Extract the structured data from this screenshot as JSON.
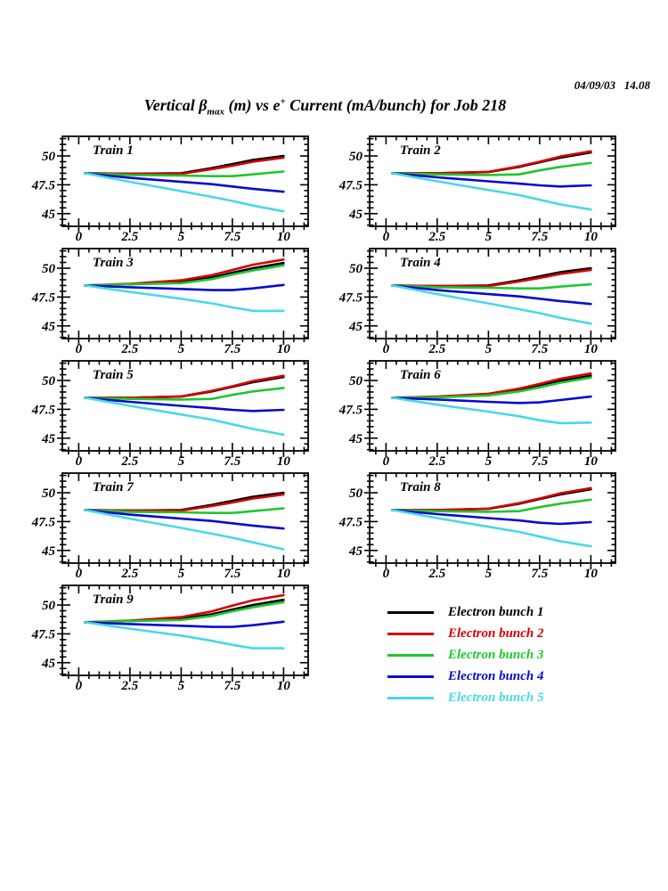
{
  "page": {
    "timestamp": "04/09/03   14.08",
    "title_part1": "Vertical β",
    "title_sub": "max",
    "title_part2": " (m) vs e",
    "title_sup": "+",
    "title_part3": " Current (mA/bunch) for Job 218"
  },
  "chart_data": {
    "type": "line",
    "title": "Vertical β_max (m) vs e+ Current (mA/bunch) for Job 218",
    "timestamp": "04/09/03 14.08",
    "layout": "grid of 9 panels (2 columns x 5 rows), legend in bottom-right cell",
    "grid": false,
    "legend_position": "bottom-right",
    "x": [
      0.3,
      2.5,
      5,
      6.5,
      7.5,
      8.5,
      10
    ],
    "xlim": [
      -0.8,
      11.2
    ],
    "ylim": [
      43.9,
      51.7
    ],
    "x_ticks": [
      0,
      2.5,
      5,
      7.5,
      10
    ],
    "x_tick_labels": [
      "0",
      "2.5",
      "5",
      "7.5",
      "10"
    ],
    "y_ticks": [
      45,
      47.5,
      50
    ],
    "y_tick_labels": [
      "45",
      "47.5",
      "50"
    ],
    "minor_tick_step": 0.5,
    "series": [
      {
        "name": "Electron bunch 1",
        "color": "#000000"
      },
      {
        "name": "Electron bunch 2",
        "color": "#d40000"
      },
      {
        "name": "Electron bunch 3",
        "color": "#1fc72e"
      },
      {
        "name": "Electron bunch 4",
        "color": "#0a0acc"
      },
      {
        "name": "Electron bunch 5",
        "color": "#49d8e6"
      }
    ],
    "panels": [
      {
        "label": "Train 1",
        "values": [
          [
            48.5,
            48.45,
            48.5,
            48.95,
            49.3,
            49.65,
            50.0
          ],
          [
            48.5,
            48.45,
            48.45,
            48.85,
            49.15,
            49.5,
            49.85
          ],
          [
            48.5,
            48.35,
            48.3,
            48.25,
            48.25,
            48.4,
            48.65
          ],
          [
            48.5,
            48.1,
            47.75,
            47.55,
            47.35,
            47.15,
            46.9
          ],
          [
            48.5,
            47.75,
            46.95,
            46.45,
            46.1,
            45.7,
            45.2
          ]
        ]
      },
      {
        "label": "Train 2",
        "values": [
          [
            48.5,
            48.5,
            48.6,
            49.05,
            49.45,
            49.85,
            50.3
          ],
          [
            48.5,
            48.5,
            48.62,
            49.1,
            49.5,
            49.95,
            50.4
          ],
          [
            48.5,
            48.4,
            48.35,
            48.4,
            48.75,
            49.05,
            49.4
          ],
          [
            48.5,
            48.15,
            47.8,
            47.6,
            47.45,
            47.35,
            47.45
          ],
          [
            48.5,
            47.8,
            47.05,
            46.6,
            46.2,
            45.8,
            45.35
          ]
        ]
      },
      {
        "label": "Train 3",
        "values": [
          [
            48.5,
            48.6,
            48.8,
            49.2,
            49.6,
            50.0,
            50.45
          ],
          [
            48.5,
            48.65,
            48.95,
            49.4,
            49.85,
            50.3,
            50.75
          ],
          [
            48.5,
            48.6,
            48.7,
            49.05,
            49.45,
            49.8,
            50.25
          ],
          [
            48.5,
            48.35,
            48.2,
            48.1,
            48.1,
            48.25,
            48.55
          ],
          [
            48.5,
            47.95,
            47.35,
            46.95,
            46.6,
            46.3,
            46.3
          ]
        ]
      },
      {
        "label": "Train 4",
        "values": [
          [
            48.5,
            48.45,
            48.5,
            48.95,
            49.3,
            49.65,
            50.0
          ],
          [
            48.5,
            48.45,
            48.45,
            48.85,
            49.15,
            49.5,
            49.85
          ],
          [
            48.5,
            48.35,
            48.3,
            48.25,
            48.25,
            48.4,
            48.6
          ],
          [
            48.5,
            48.1,
            47.75,
            47.55,
            47.35,
            47.15,
            46.9
          ],
          [
            48.5,
            47.75,
            46.95,
            46.45,
            46.1,
            45.7,
            45.2
          ]
        ]
      },
      {
        "label": "Train 5",
        "values": [
          [
            48.5,
            48.5,
            48.6,
            49.05,
            49.45,
            49.85,
            50.3
          ],
          [
            48.5,
            48.5,
            48.62,
            49.1,
            49.5,
            49.95,
            50.4
          ],
          [
            48.5,
            48.4,
            48.35,
            48.4,
            48.75,
            49.05,
            49.35
          ],
          [
            48.5,
            48.15,
            47.8,
            47.6,
            47.45,
            47.35,
            47.45
          ],
          [
            48.5,
            47.8,
            47.05,
            46.6,
            46.2,
            45.8,
            45.3
          ]
        ]
      },
      {
        "label": "Train 6",
        "values": [
          [
            48.5,
            48.55,
            48.75,
            49.15,
            49.55,
            49.95,
            50.4
          ],
          [
            48.5,
            48.6,
            48.85,
            49.3,
            49.7,
            50.15,
            50.6
          ],
          [
            48.5,
            48.55,
            48.7,
            49.05,
            49.4,
            49.8,
            50.25
          ],
          [
            48.5,
            48.35,
            48.15,
            48.05,
            48.1,
            48.3,
            48.6
          ],
          [
            48.5,
            47.9,
            47.3,
            46.9,
            46.55,
            46.3,
            46.35
          ]
        ]
      },
      {
        "label": "Train 7",
        "values": [
          [
            48.5,
            48.45,
            48.5,
            48.95,
            49.3,
            49.65,
            50.0
          ],
          [
            48.5,
            48.45,
            48.45,
            48.85,
            49.15,
            49.5,
            49.85
          ],
          [
            48.5,
            48.35,
            48.3,
            48.25,
            48.25,
            48.4,
            48.65
          ],
          [
            48.5,
            48.1,
            47.75,
            47.55,
            47.35,
            47.15,
            46.9
          ],
          [
            48.5,
            47.75,
            46.95,
            46.45,
            46.1,
            45.7,
            45.1
          ]
        ]
      },
      {
        "label": "Train 8",
        "values": [
          [
            48.5,
            48.5,
            48.6,
            49.05,
            49.45,
            49.85,
            50.3
          ],
          [
            48.5,
            48.5,
            48.62,
            49.1,
            49.5,
            49.95,
            50.4
          ],
          [
            48.5,
            48.4,
            48.35,
            48.4,
            48.75,
            49.05,
            49.4
          ],
          [
            48.5,
            48.15,
            47.8,
            47.6,
            47.4,
            47.3,
            47.45
          ],
          [
            48.5,
            47.8,
            47.05,
            46.6,
            46.2,
            45.8,
            45.35
          ]
        ]
      },
      {
        "label": "Train 9",
        "values": [
          [
            48.5,
            48.6,
            48.8,
            49.2,
            49.6,
            50.0,
            50.45
          ],
          [
            48.5,
            48.65,
            48.95,
            49.45,
            49.95,
            50.4,
            50.85
          ],
          [
            48.5,
            48.6,
            48.7,
            49.05,
            49.45,
            49.8,
            50.25
          ],
          [
            48.5,
            48.35,
            48.2,
            48.1,
            48.1,
            48.25,
            48.55
          ],
          [
            48.5,
            47.95,
            47.35,
            46.9,
            46.55,
            46.25,
            46.25
          ]
        ]
      }
    ]
  }
}
